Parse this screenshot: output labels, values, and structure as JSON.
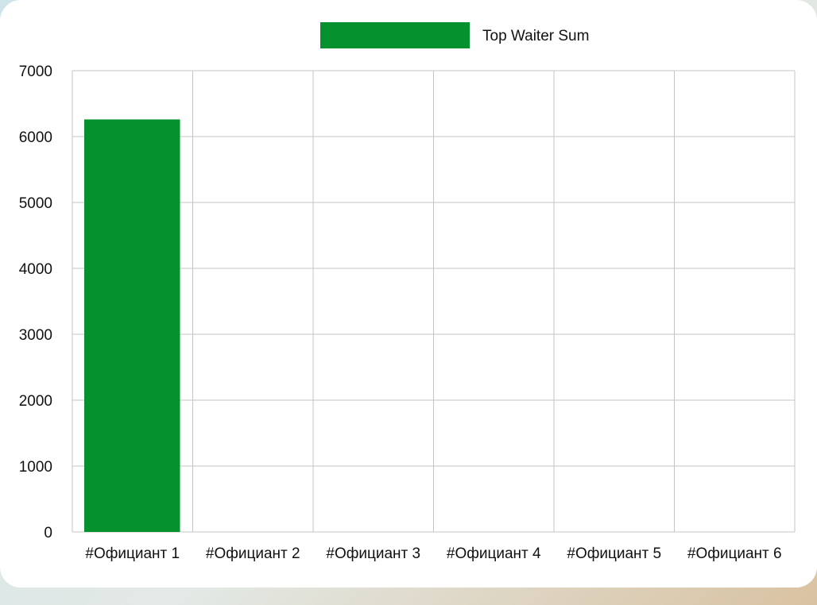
{
  "chart_data": {
    "type": "bar",
    "categories": [
      "#Официант 1",
      "#Официант 2",
      "#Официант 3",
      "#Официант 4",
      "#Официант 5",
      "#Официант 6"
    ],
    "series": [
      {
        "name": "Top Waiter Sum",
        "values": [
          6260,
          0,
          0,
          0,
          0,
          0
        ],
        "color": "#06912f"
      }
    ],
    "ylim": [
      0,
      7000
    ],
    "yticks": [
      0,
      1000,
      2000,
      3000,
      4000,
      5000,
      6000,
      7000
    ],
    "grid": true,
    "legend_position": "top-center"
  }
}
